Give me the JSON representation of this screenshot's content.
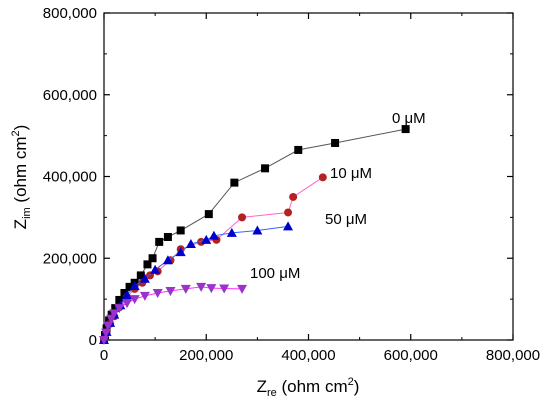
{
  "chart_data": {
    "type": "scatter",
    "title": "",
    "xlabel": {
      "main": "Z",
      "sub": "re",
      "unit_open": " (ohm cm",
      "sup": "2",
      "unit_close": ")"
    },
    "ylabel": {
      "main": "Z",
      "sub": "im",
      "unit_open": " (ohm cm",
      "sup": "2",
      "unit_close": ")"
    },
    "xlim": [
      0,
      800000
    ],
    "ylim": [
      0,
      800000
    ],
    "xticks": [
      0,
      200000,
      400000,
      600000,
      800000
    ],
    "yticks": [
      0,
      200000,
      400000,
      600000,
      800000
    ],
    "xtick_labels": [
      "0",
      "200,000",
      "400,000",
      "600,000",
      "800,000"
    ],
    "ytick_labels": [
      "0",
      "200,000",
      "400,000",
      "600,000",
      "800,000"
    ],
    "grid": false,
    "legend": "none (series labelled inline)",
    "series": [
      {
        "name": "0 μM",
        "marker": "square",
        "color": "#000000",
        "line_color": "#555555",
        "x": [
          0,
          2000,
          5000,
          10000,
          15000,
          22000,
          30000,
          40000,
          50000,
          60000,
          72000,
          85000,
          95000,
          108000,
          125000,
          150000,
          205000,
          255000,
          315000,
          380000,
          452000,
          590000
        ],
        "y": [
          0,
          12000,
          28000,
          48000,
          62000,
          78000,
          98000,
          115000,
          130000,
          140000,
          158000,
          185000,
          200000,
          240000,
          252000,
          268000,
          308000,
          385000,
          420000,
          465000,
          482000,
          516000
        ]
      },
      {
        "name": "10 μM",
        "marker": "circle",
        "color": "#b22222",
        "line_color": "#ff66cc",
        "x": [
          0,
          5000,
          12000,
          20000,
          30000,
          45000,
          60000,
          75000,
          90000,
          105000,
          130000,
          150000,
          190000,
          220000,
          270000,
          360000,
          370000,
          428000
        ],
        "y": [
          0,
          18000,
          40000,
          58000,
          80000,
          105000,
          125000,
          140000,
          158000,
          168000,
          195000,
          222000,
          240000,
          245000,
          300000,
          312000,
          350000,
          398000
        ]
      },
      {
        "name": "50 μM",
        "marker": "triangle-up",
        "color": "#0000cc",
        "line_color": "#3366ff",
        "x": [
          0,
          5000,
          12000,
          20000,
          32000,
          45000,
          60000,
          80000,
          100000,
          125000,
          150000,
          170000,
          200000,
          215000,
          250000,
          300000,
          360000
        ],
        "y": [
          0,
          20000,
          42000,
          62000,
          85000,
          110000,
          132000,
          150000,
          172000,
          195000,
          215000,
          235000,
          245000,
          255000,
          262000,
          268000,
          278000
        ]
      },
      {
        "name": "100 μM",
        "marker": "triangle-down",
        "color": "#9933cc",
        "line_color": "#ff33ff",
        "x": [
          0,
          4000,
          8000,
          14000,
          20000,
          30000,
          45000,
          60000,
          80000,
          105000,
          130000,
          160000,
          190000,
          210000,
          235000,
          270000
        ],
        "y": [
          0,
          18000,
          35000,
          52000,
          65000,
          78000,
          90000,
          100000,
          108000,
          115000,
          120000,
          125000,
          130000,
          127000,
          126000,
          125000
        ]
      }
    ]
  }
}
